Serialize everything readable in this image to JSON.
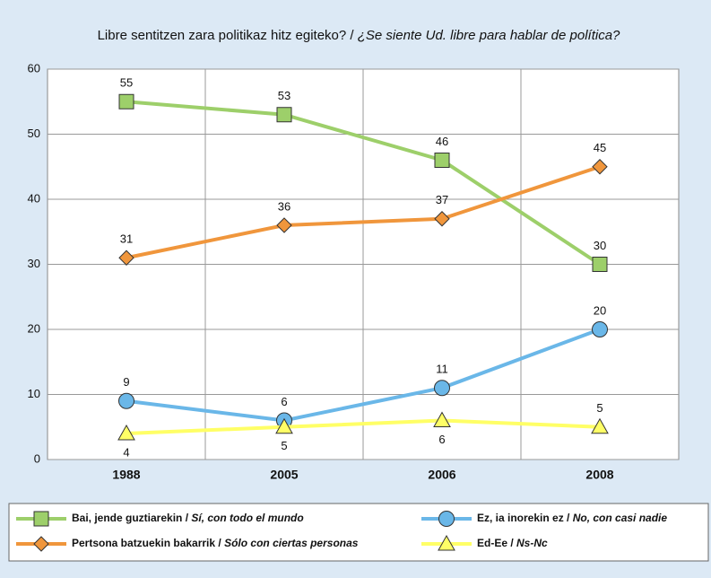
{
  "chart_data": {
    "type": "line",
    "title": "Libre sentitzen zara politikaz hitz egiteko? / ¿Se siente Ud. libre para hablar de política?",
    "categories": [
      "1988",
      "2005",
      "2006",
      "2008"
    ],
    "series": [
      {
        "name": "Bai, jende guztiarekin / Sí, con todo el mundo",
        "color": "#9dcf6a",
        "marker": "square",
        "values": [
          55,
          53,
          46,
          30
        ]
      },
      {
        "name": "Pertsona batzuekin bakarrik / Sólo con ciertas personas",
        "color": "#f0963c",
        "marker": "diamond",
        "values": [
          31,
          36,
          37,
          45
        ]
      },
      {
        "name": "Ez, ia inorekin ez / No, con casi nadie",
        "color": "#6ab7e8",
        "marker": "circle",
        "values": [
          9,
          6,
          11,
          20
        ]
      },
      {
        "name": "Ed-Ee / Ns-Nc",
        "color": "#ffff66",
        "marker": "triangle",
        "values": [
          4,
          5,
          6,
          5
        ]
      }
    ],
    "ylim": [
      0,
      60
    ],
    "yticks": [
      0,
      10,
      20,
      30,
      40,
      50,
      60
    ],
    "grid": true
  }
}
